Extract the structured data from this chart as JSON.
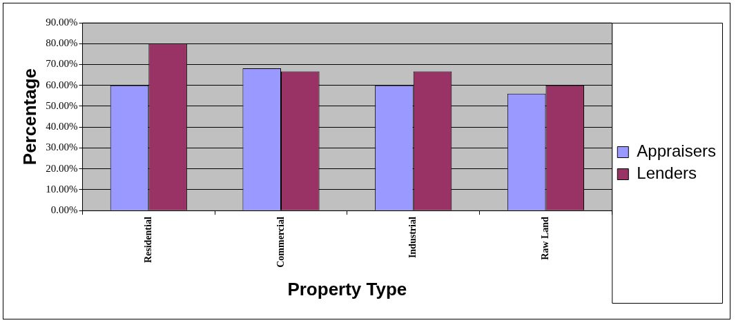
{
  "chart_data": {
    "type": "bar",
    "xlabel": "Property Type",
    "ylabel": "Percentage",
    "categories": [
      "Residential",
      "Commercial",
      "Industrial",
      "Raw Land"
    ],
    "series": [
      {
        "name": "Appraisers",
        "color": "#9999ff",
        "values": [
          60,
          68.2,
          60,
          56
        ]
      },
      {
        "name": "Lenders",
        "color": "#993366",
        "values": [
          80,
          66.7,
          66.7,
          60
        ]
      }
    ],
    "ylim": [
      0,
      90
    ],
    "yticks": [
      {
        "value": 0,
        "label": "0.00%"
      },
      {
        "value": 10,
        "label": "10.00%"
      },
      {
        "value": 20,
        "label": "20.00%"
      },
      {
        "value": 30,
        "label": "30.00%"
      },
      {
        "value": 40,
        "label": "40.00%"
      },
      {
        "value": 50,
        "label": "50.00%"
      },
      {
        "value": 60,
        "label": "60.00%"
      },
      {
        "value": 70,
        "label": "70.00%"
      },
      {
        "value": 80,
        "label": "80.00%"
      },
      {
        "value": 90,
        "label": "90.00%"
      }
    ],
    "grid": "y",
    "legend": "right"
  }
}
